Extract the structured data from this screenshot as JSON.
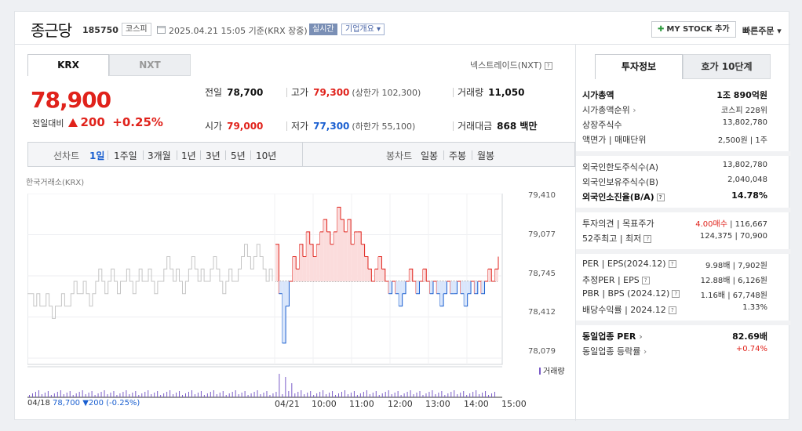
{
  "header": {
    "name": "종근당",
    "code": "185750",
    "market": "코스피",
    "base_time": "2025.04.21 15:05 기준(KRX 장중)",
    "live_badge": "실시간",
    "company_info": "기업개요 ▾",
    "mystock_label": "MY STOCK 추가",
    "quick_order": "빠른주문 ▾"
  },
  "tabs": {
    "krx": "KRX",
    "nxt": "NXT",
    "nxt_link": "넥스트레이드(NXT)"
  },
  "price": {
    "current": "78,900",
    "change_label": "전일대비",
    "change": "200",
    "change_pct": "+0.25%"
  },
  "quote": {
    "prev_label": "전일",
    "prev": "78,700",
    "high_label": "고가",
    "high": "79,300",
    "upper_limit": "(상한가 102,300)",
    "volume_label": "거래량",
    "volume": "11,050",
    "open_label": "시가",
    "open": "79,000",
    "low_label": "저가",
    "low": "77,300",
    "lower_limit": "(하한가 55,100)",
    "amount_label": "거래대금",
    "amount": "868 백만"
  },
  "toolbar": {
    "line_chart": "선차트",
    "periods": [
      "1일",
      "1주일",
      "3개월",
      "1년",
      "3년",
      "5년",
      "10년"
    ],
    "candle_chart": "봉차트",
    "candle_periods": [
      "일봉",
      "주봉",
      "월봉"
    ]
  },
  "chart_data": {
    "type": "line",
    "source": "한국거래소(KRX)",
    "y_ticks": [
      "79,410",
      "79,077",
      "78,745",
      "78,412",
      "78,079"
    ],
    "x_ticks": [
      "04/21",
      "10:00",
      "11:00",
      "12:00",
      "13:00",
      "14:00",
      "15:00"
    ],
    "prev_day_label": "04/18",
    "prev_day_close": "78,700",
    "prev_day_change": "▼200 (-0.25%)",
    "baseline": 78700,
    "volume_legend": "거래량",
    "ylim": [
      78079,
      79410
    ],
    "prev_day_prices": [
      78600,
      78600,
      78500,
      78600,
      78500,
      78500,
      78600,
      78500,
      78400,
      78500,
      78500,
      78600,
      78500,
      78500,
      78600,
      78700,
      78600,
      78600,
      78700,
      78600,
      78500,
      78600,
      78700,
      78800,
      78700,
      78600,
      78700,
      78800,
      78700,
      78600,
      78700,
      78700,
      78800,
      78700,
      78600,
      78700,
      78800,
      78700,
      78700,
      78800,
      78700,
      78600,
      78700,
      78700,
      78800,
      78900,
      78800,
      78700,
      78800,
      78700,
      78600,
      78700,
      78800,
      78900,
      78800,
      78700,
      78800,
      78700,
      78700,
      78800,
      78900,
      78800,
      78700,
      78600,
      78700,
      78800,
      78700,
      78700,
      78800,
      78900,
      79000,
      78900,
      78800,
      78900,
      79000,
      78900,
      78800,
      78700,
      78800,
      78700
    ],
    "today_prices": [
      79000,
      78600,
      78200,
      78500,
      78700,
      78900,
      78800,
      79000,
      78900,
      79100,
      79000,
      78900,
      79000,
      79100,
      79200,
      79100,
      79000,
      79100,
      79300,
      79200,
      79100,
      79200,
      79000,
      79100,
      79100,
      79000,
      78900,
      78800,
      78700,
      78800,
      78900,
      78800,
      78700,
      78600,
      78700,
      78600,
      78500,
      78600,
      78700,
      78800,
      78700,
      78600,
      78700,
      78800,
      78700,
      78600,
      78700,
      78600,
      78500,
      78600,
      78700,
      78600,
      78600,
      78700,
      78600,
      78500,
      78600,
      78700,
      78600,
      78700,
      78600,
      78700,
      78800,
      78700,
      78800,
      78900
    ],
    "volume_note": "intraday volume bars"
  },
  "right_panel": {
    "tab_info": "투자정보",
    "tab_orderbook": "호가 10단계",
    "rows1": [
      {
        "label": "시가총액",
        "value": "1조 890억원"
      },
      {
        "label": "시가총액순위",
        "value": "코스피 228위"
      },
      {
        "label": "상장주식수",
        "value": "13,802,780"
      },
      {
        "label": "액면가 | 매매단위",
        "value": "2,500원 | 1주"
      }
    ],
    "rows2": [
      {
        "label": "외국인한도주식수(A)",
        "value": "13,802,780"
      },
      {
        "label": "외국인보유주식수(B)",
        "value": "2,040,048"
      },
      {
        "label": "외국인소진율(B/A)",
        "value": "14.78%"
      }
    ],
    "rows3": [
      {
        "label": "투자의견 | 목표주가",
        "opinion": "4.00매수",
        "value": "| 116,667"
      },
      {
        "label": "52주최고 | 최저",
        "value": "124,375 | 70,900"
      }
    ],
    "rows4": [
      {
        "label": "PER | EPS(2024.12)",
        "value": "9.98배 | 7,902원"
      },
      {
        "label": "추정PER | EPS",
        "value": "12.88배 | 6,126원"
      },
      {
        "label": "PBR | BPS (2024.12)",
        "value": "1.16배 | 67,748원"
      },
      {
        "label": "배당수익률 | 2024.12",
        "value": "1.33%"
      }
    ],
    "rows5": [
      {
        "label": "동일업종 PER",
        "value": "82.69배"
      },
      {
        "label": "동일업종 등락률",
        "value": "+0.74%"
      }
    ]
  },
  "colors": {
    "up": "#e0221b",
    "down": "#1a5fd0",
    "prev_line": "#c5c5c5",
    "volume": "#7a5cc8"
  }
}
